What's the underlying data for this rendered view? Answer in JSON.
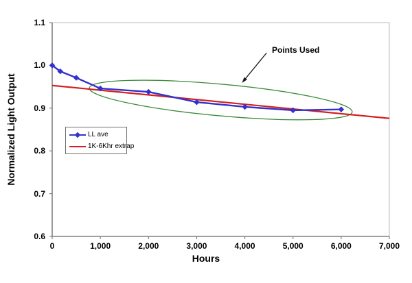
{
  "chart_data": {
    "type": "line",
    "title": "",
    "xlabel": "Hours",
    "ylabel": "Normalized Light Output",
    "xlim": [
      0,
      7000
    ],
    "ylim": [
      0.6,
      1.1
    ],
    "grid": false,
    "x_ticks": [
      {
        "value": 0,
        "label": "0"
      },
      {
        "value": 1000,
        "label": "1,000"
      },
      {
        "value": 2000,
        "label": "2,000"
      },
      {
        "value": 3000,
        "label": "3,000"
      },
      {
        "value": 4000,
        "label": "4,000"
      },
      {
        "value": 5000,
        "label": "5,000"
      },
      {
        "value": 6000,
        "label": "6,000"
      },
      {
        "value": 7000,
        "label": "7,000"
      }
    ],
    "y_ticks": [
      {
        "value": 1.1,
        "label": "1.1"
      },
      {
        "value": 1.0,
        "label": "1.0"
      },
      {
        "value": 0.9,
        "label": "0.9"
      },
      {
        "value": 0.8,
        "label": "0.8"
      },
      {
        "value": 0.7,
        "label": "0.7"
      },
      {
        "value": 0.6,
        "label": "0.6"
      }
    ],
    "series": [
      {
        "name": "LL ave",
        "color": "#3232CC",
        "marker": "diamond",
        "x": [
          0,
          168,
          500,
          1000,
          2000,
          3000,
          4000,
          5000,
          6000
        ],
        "y": [
          1.0,
          0.986,
          0.971,
          0.946,
          0.938,
          0.914,
          0.903,
          0.895,
          0.897
        ]
      },
      {
        "name": "1K-6Khr extrap",
        "color": "#D42020",
        "marker": "none",
        "x": [
          0,
          7000
        ],
        "y": [
          0.953,
          0.876
        ]
      }
    ],
    "legend": {
      "position": "inside-middle-left"
    },
    "annotation": {
      "label": "Points Used",
      "ellipse": {
        "cx": 3500,
        "cy": 0.919,
        "rx": 2740,
        "ry": 0.037,
        "rotate_deg": 5.2,
        "color": "#3C8C3C"
      },
      "arrow": {
        "from_x": 4450,
        "from_y": 1.029,
        "to_x": 3940,
        "to_y": 0.959,
        "color": "#1A1A1A"
      }
    },
    "colors": {
      "axis": "#808080",
      "plot_border": "#B9B9B9",
      "text": "#000000"
    }
  }
}
